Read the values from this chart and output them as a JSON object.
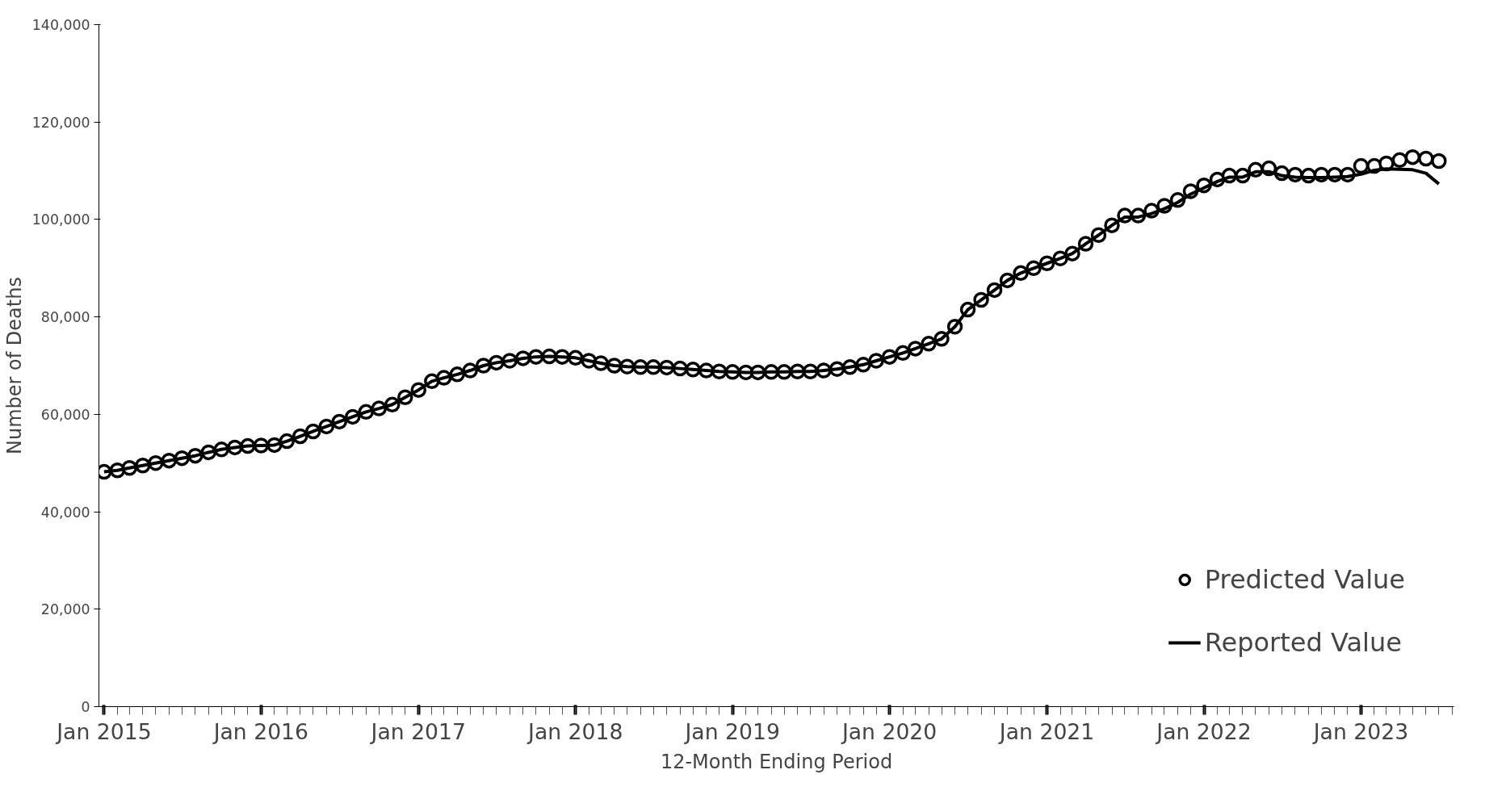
{
  "chart_data": {
    "type": "line",
    "xlabel": "12-Month Ending Period",
    "ylabel": "Number of Deaths",
    "x": [
      "2015-01",
      "2015-02",
      "2015-03",
      "2015-04",
      "2015-05",
      "2015-06",
      "2015-07",
      "2015-08",
      "2015-09",
      "2015-10",
      "2015-11",
      "2015-12",
      "2016-01",
      "2016-02",
      "2016-03",
      "2016-04",
      "2016-05",
      "2016-06",
      "2016-07",
      "2016-08",
      "2016-09",
      "2016-10",
      "2016-11",
      "2016-12",
      "2017-01",
      "2017-02",
      "2017-03",
      "2017-04",
      "2017-05",
      "2017-06",
      "2017-07",
      "2017-08",
      "2017-09",
      "2017-10",
      "2017-11",
      "2017-12",
      "2018-01",
      "2018-02",
      "2018-03",
      "2018-04",
      "2018-05",
      "2018-06",
      "2018-07",
      "2018-08",
      "2018-09",
      "2018-10",
      "2018-11",
      "2018-12",
      "2019-01",
      "2019-02",
      "2019-03",
      "2019-04",
      "2019-05",
      "2019-06",
      "2019-07",
      "2019-08",
      "2019-09",
      "2019-10",
      "2019-11",
      "2019-12",
      "2020-01",
      "2020-02",
      "2020-03",
      "2020-04",
      "2020-05",
      "2020-06",
      "2020-07",
      "2020-08",
      "2020-09",
      "2020-10",
      "2020-11",
      "2020-12",
      "2021-01",
      "2021-02",
      "2021-03",
      "2021-04",
      "2021-05",
      "2021-06",
      "2021-07",
      "2021-08",
      "2021-09",
      "2021-10",
      "2021-11",
      "2021-12",
      "2022-01",
      "2022-02",
      "2022-03",
      "2022-04",
      "2022-05",
      "2022-06",
      "2022-07",
      "2022-08",
      "2022-09",
      "2022-10",
      "2022-11",
      "2022-12",
      "2023-01",
      "2023-02",
      "2023-03",
      "2023-04",
      "2023-05",
      "2023-06",
      "2023-07"
    ],
    "series": [
      {
        "name": "Predicted Value",
        "type": "scatter",
        "marker": "circle",
        "color": "#000000",
        "values": [
          48200,
          48500,
          49000,
          49500,
          50000,
          50500,
          51000,
          51500,
          52200,
          52800,
          53200,
          53500,
          53600,
          53700,
          54500,
          55500,
          56500,
          57500,
          58500,
          59500,
          60500,
          61200,
          62000,
          63500,
          65000,
          66800,
          67500,
          68200,
          69000,
          70000,
          70600,
          71000,
          71500,
          71800,
          71900,
          71800,
          71600,
          71000,
          70500,
          70000,
          69800,
          69700,
          69700,
          69600,
          69400,
          69200,
          69000,
          68800,
          68700,
          68600,
          68600,
          68700,
          68700,
          68800,
          68800,
          69000,
          69300,
          69700,
          70200,
          71000,
          71800,
          72600,
          73500,
          74500,
          75500,
          78000,
          81500,
          83500,
          85500,
          87500,
          89000,
          90000,
          91000,
          92000,
          93000,
          95000,
          96800,
          98800,
          100800,
          100800,
          101800,
          102800,
          104000,
          105800,
          107000,
          108200,
          109000,
          109000,
          110200,
          110500,
          109500,
          109200,
          109000,
          109200,
          109200,
          109200,
          111000,
          111000,
          111500,
          112200,
          112800,
          112500,
          112000
        ]
      },
      {
        "name": "Reported Value",
        "line_style": "solid",
        "color": "#000000",
        "values": [
          48200,
          48500,
          49000,
          49500,
          50000,
          50500,
          51000,
          51500,
          52200,
          52800,
          53200,
          53500,
          53600,
          53700,
          54500,
          55500,
          56500,
          57500,
          58500,
          59500,
          60500,
          61200,
          62000,
          63500,
          65000,
          66800,
          67500,
          68200,
          69000,
          70000,
          70600,
          71000,
          71500,
          71800,
          71900,
          71800,
          71600,
          71000,
          70500,
          70000,
          69800,
          69700,
          69700,
          69600,
          69400,
          69200,
          69000,
          68800,
          68700,
          68600,
          68600,
          68700,
          68700,
          68800,
          68800,
          69000,
          69300,
          69700,
          70200,
          71000,
          71800,
          72600,
          73500,
          74500,
          75500,
          78000,
          81500,
          83500,
          85500,
          87500,
          89000,
          90000,
          91000,
          92000,
          93000,
          95000,
          96800,
          98800,
          100500,
          100500,
          101200,
          102200,
          103500,
          105200,
          106500,
          107800,
          108700,
          108700,
          109800,
          109800,
          109000,
          108700,
          108600,
          108600,
          108700,
          108800,
          109300,
          110100,
          110400,
          110300,
          110200,
          109500,
          107300
        ]
      }
    ],
    "xlim": [
      "2014-12-20",
      "2023-08-05"
    ],
    "xticks": [
      {
        "value": "2015-01",
        "label": "Jan 2015"
      },
      {
        "value": "2016-01",
        "label": "Jan 2016"
      },
      {
        "value": "2017-01",
        "label": "Jan 2017"
      },
      {
        "value": "2018-01",
        "label": "Jan 2018"
      },
      {
        "value": "2019-01",
        "label": "Jan 2019"
      },
      {
        "value": "2020-01",
        "label": "Jan 2020"
      },
      {
        "value": "2021-01",
        "label": "Jan 2021"
      },
      {
        "value": "2022-01",
        "label": "Jan 2022"
      },
      {
        "value": "2023-01",
        "label": "Jan 2023"
      }
    ],
    "ylim": [
      0,
      140000
    ],
    "yticks": [
      {
        "value": 0,
        "label": "0"
      },
      {
        "value": 20000,
        "label": "20,000"
      },
      {
        "value": 40000,
        "label": "40,000"
      },
      {
        "value": 60000,
        "label": "60,000"
      },
      {
        "value": 80000,
        "label": "80,000"
      },
      {
        "value": 100000,
        "label": "100,000"
      },
      {
        "value": 120000,
        "label": "120,000"
      },
      {
        "value": 140000,
        "label": "140,000"
      }
    ],
    "grid": false,
    "legend": "bottom right"
  }
}
